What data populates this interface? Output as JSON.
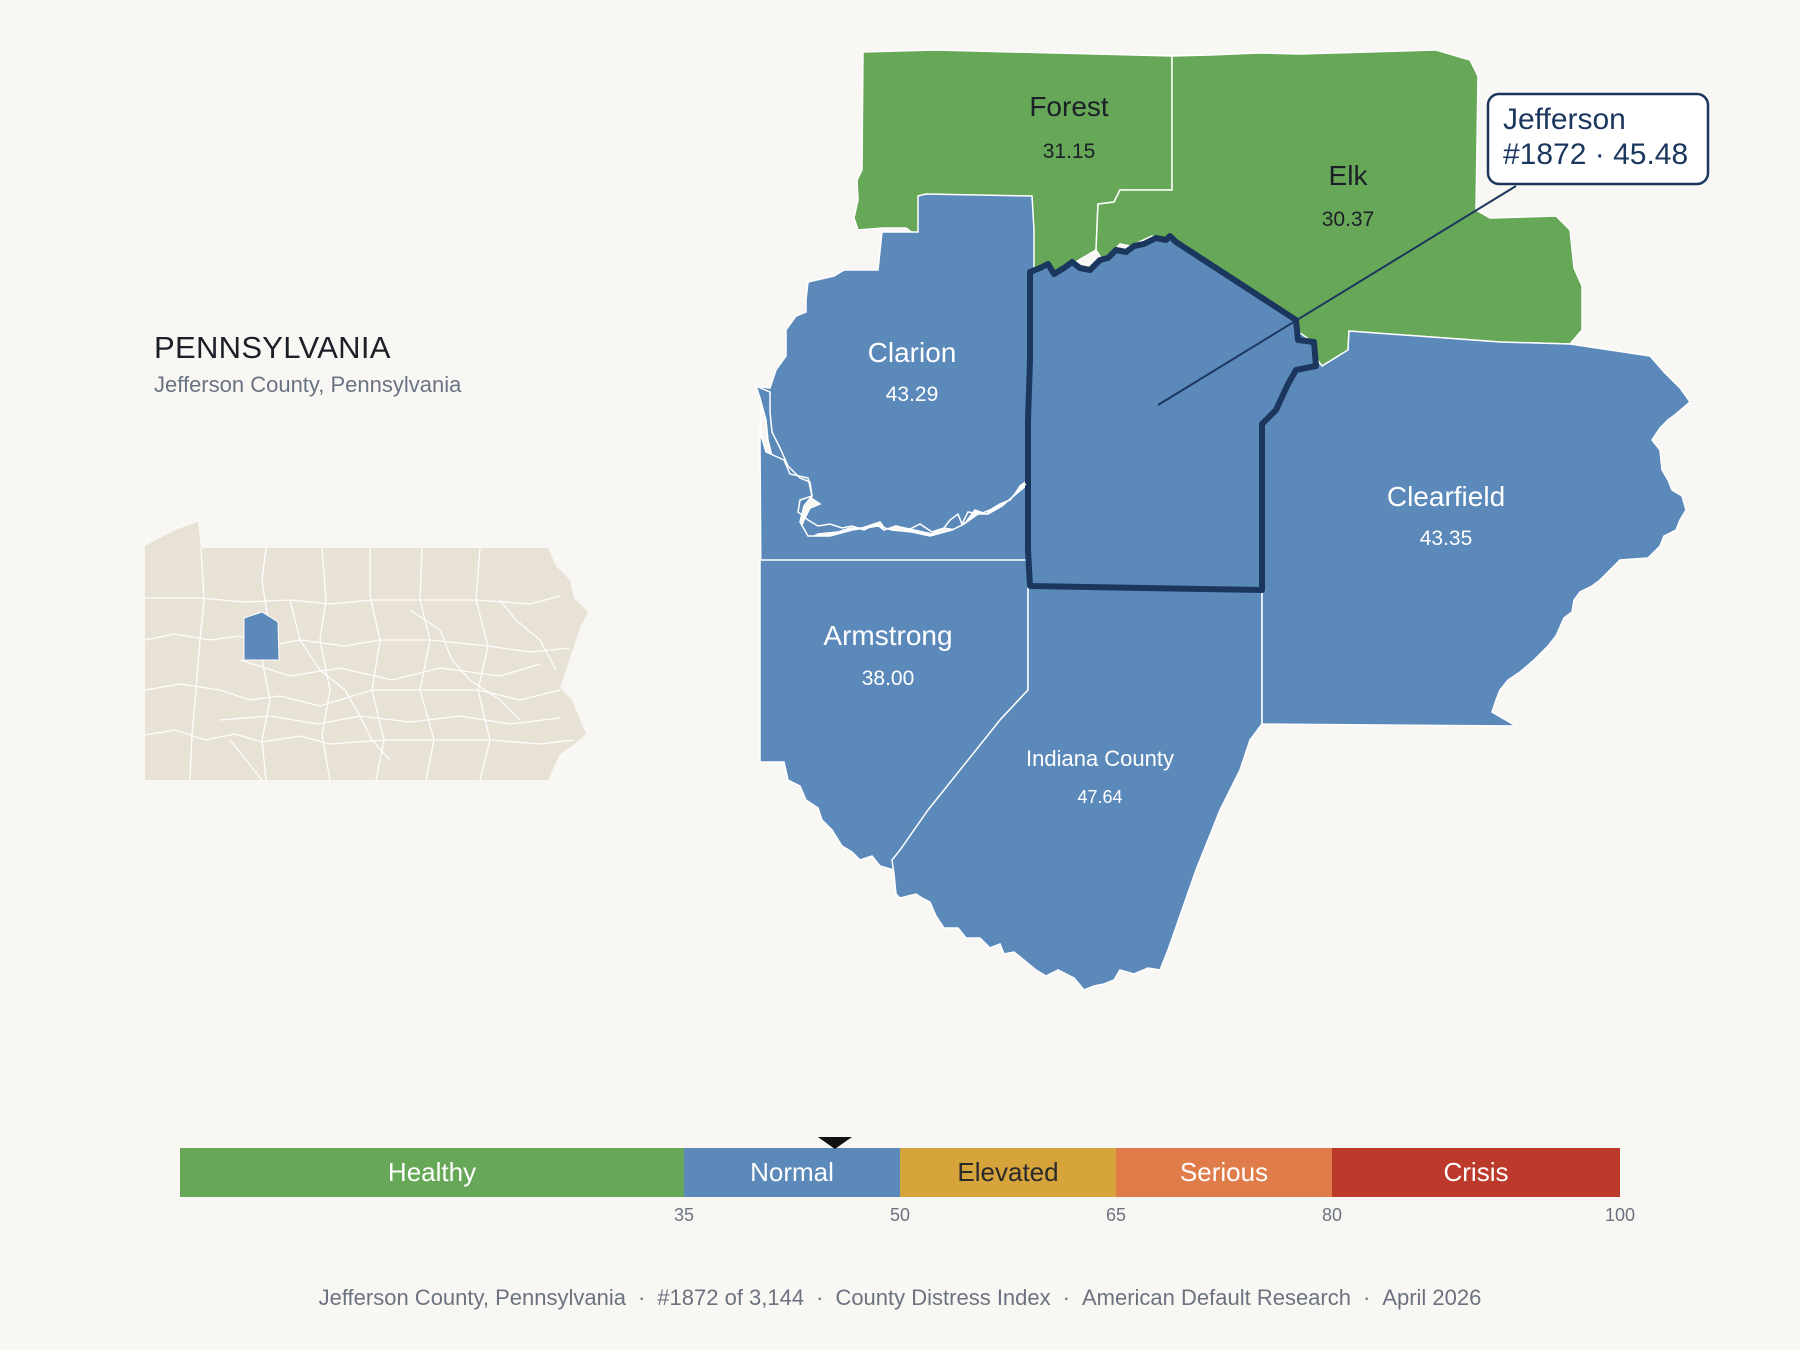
{
  "header": {
    "state": "PENNSYLVANIA",
    "subtitle": "Jefferson County, Pennsylvania"
  },
  "colors": {
    "healthy": "#67a758",
    "normal": "#5b89ba",
    "elevated": "#d7a33b",
    "serious": "#e07b4a",
    "crisis": "#bb3a2b",
    "inset_land": "#e8e2d6",
    "outline": "#1c375e"
  },
  "counties": [
    {
      "id": "forest",
      "name": "Forest",
      "value": "31.15",
      "category": "healthy"
    },
    {
      "id": "elk",
      "name": "Elk",
      "value": "30.37",
      "category": "healthy"
    },
    {
      "id": "clarion",
      "name": "Clarion",
      "value": "43.29",
      "category": "normal"
    },
    {
      "id": "clearfield",
      "name": "Clearfield",
      "value": "43.35",
      "category": "normal"
    },
    {
      "id": "armstrong",
      "name": "Armstrong",
      "value": "38.00",
      "category": "normal"
    },
    {
      "id": "indiana",
      "name": "Indiana County",
      "value": "47.64",
      "category": "normal"
    },
    {
      "id": "jefferson",
      "name": "Jefferson",
      "value": "45.48",
      "category": "normal"
    }
  ],
  "callout": {
    "name": "Jefferson",
    "rank_value": "#1872 · 45.48"
  },
  "legend": {
    "segments": [
      {
        "label": "Healthy",
        "from": 0,
        "to": 35,
        "color": "#67a758",
        "text_color": "#ffffff"
      },
      {
        "label": "Normal",
        "from": 35,
        "to": 50,
        "color": "#5b89ba",
        "text_color": "#ffffff"
      },
      {
        "label": "Elevated",
        "from": 50,
        "to": 65,
        "color": "#d7a33b",
        "text_color": "#2a2a2a"
      },
      {
        "label": "Serious",
        "from": 65,
        "to": 80,
        "color": "#e07b4a",
        "text_color": "#ffffff"
      },
      {
        "label": "Crisis",
        "from": 80,
        "to": 100,
        "color": "#bb3a2b",
        "text_color": "#ffffff"
      }
    ],
    "ticks": [
      "35",
      "50",
      "65",
      "80",
      "100"
    ],
    "marker_value": 45.48
  },
  "footer": {
    "county": "Jefferson County, Pennsylvania",
    "rank": "#1872 of 3,144",
    "index": "County Distress Index",
    "source": "American Default Research",
    "date": "April 2026"
  }
}
